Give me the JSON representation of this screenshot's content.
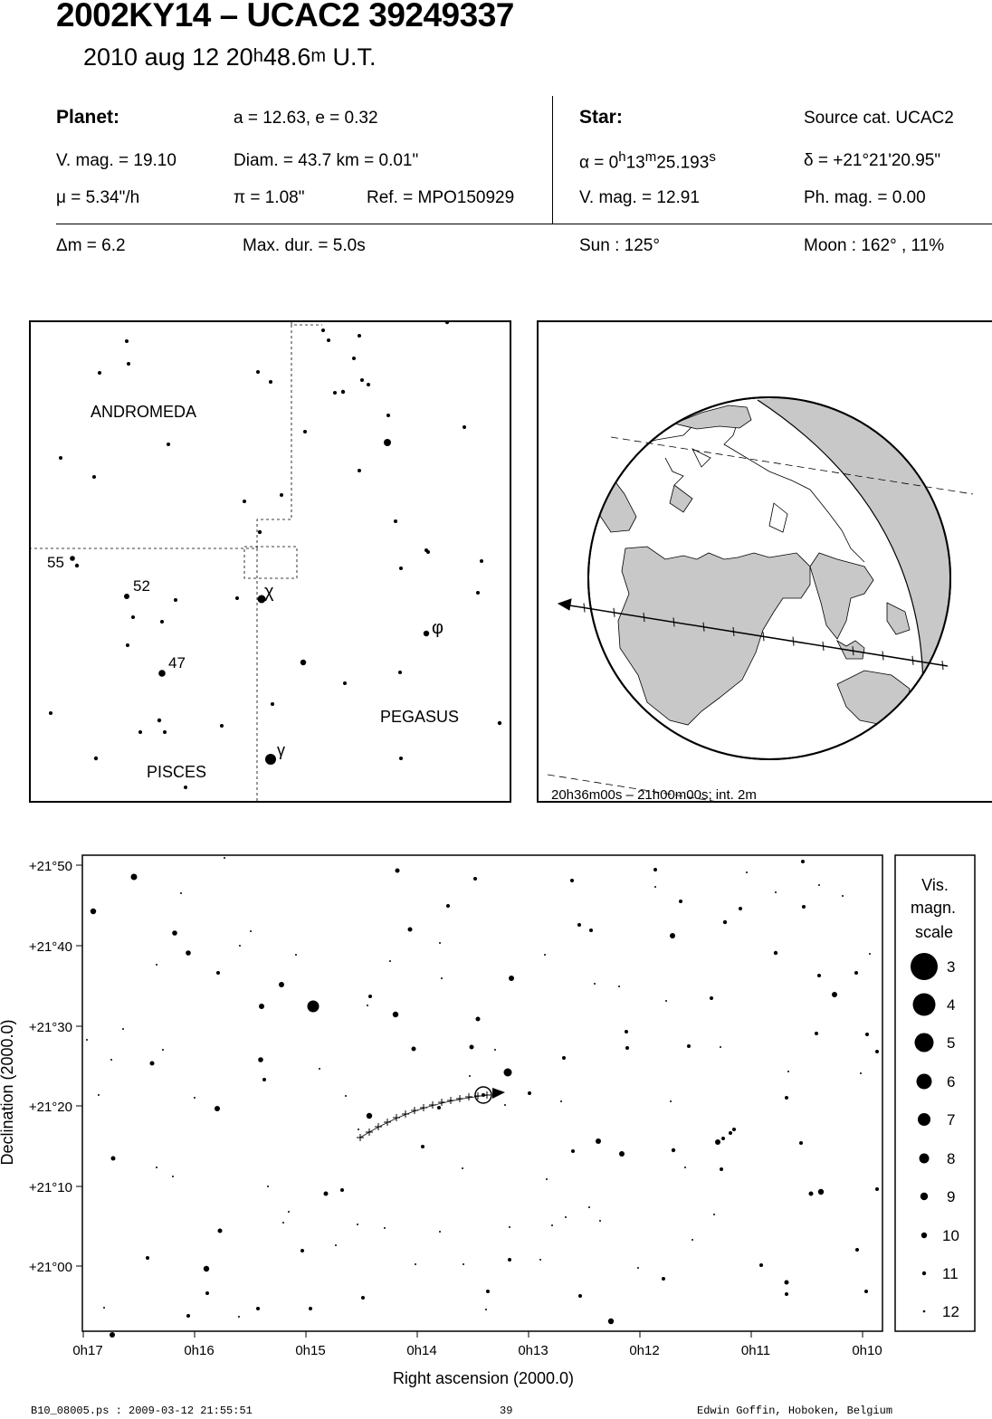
{
  "header": {
    "title": "2002KY14  –  UCAC2 39249337",
    "date": "2010 aug 12  20",
    "time_h": "h",
    "time_min": "48.6",
    "time_m": "m",
    "time_ut": " U.T."
  },
  "planet": {
    "heading": "Planet:",
    "orbit": "a = 12.63, e = 0.32",
    "vmag": "V. mag. = 19.10",
    "diam": "Diam. = 43.7 km = 0.01\"",
    "mu": "μ =  5.34\"/h",
    "pi": "π =  1.08\"",
    "ref": "Ref. = MPO150929"
  },
  "star": {
    "heading": "Star:",
    "source": "Source cat.  UCAC2",
    "alpha_pre": "α =  0",
    "alpha_h": "h",
    "alpha_mid": "13",
    "alpha_m": "m",
    "alpha_sec": "25.193",
    "alpha_s": "s",
    "delta": "δ = +21°21'20.95\"",
    "vmag": "V. mag. = 12.91",
    "phmag": "Ph. mag. =  0.00"
  },
  "event": {
    "dm": "Δm = 6.2",
    "maxdur": "Max. dur. = 5.0s",
    "sun": "Sun : 125°",
    "moon": "Moon : 162° , 11%"
  },
  "constellation_map": {
    "labels": {
      "andromeda": "ANDROMEDA",
      "pegasus": "PEGASUS",
      "pisces": "PISCES"
    },
    "star_labels": {
      "s55": "55",
      "s52": "52",
      "s47": "47",
      "chi": "χ",
      "phi": "φ",
      "gamma": "γ"
    }
  },
  "globe": {
    "caption": "20h36m00s – 21h00m00s; int.  2m"
  },
  "chart_data": {
    "type": "scatter",
    "xlabel": "Right ascension (2000.0)",
    "ylabel": "Declination (2000.0)",
    "x_ticks": [
      "0h17",
      "0h16",
      "0h15",
      "0h14",
      "0h13",
      "0h12",
      "0h11",
      "0h10"
    ],
    "y_ticks": [
      "+21°50",
      "+21°40",
      "+21°30",
      "+21°20",
      "+21°10",
      "+21°00"
    ],
    "target_star": {
      "ra": "0h13m25.193s",
      "dec": "+21°21'20.95\""
    }
  },
  "legend": {
    "title1": "Vis.",
    "title2": "magn.",
    "title3": "scale",
    "items": [
      "3",
      "4",
      "5",
      "6",
      "7",
      "8",
      "9",
      "10",
      "11",
      "12"
    ]
  },
  "footer": {
    "file": "B10_08005.ps : 2009-03-12 21:55:51",
    "page": "39",
    "author": "Edwin Goffin, Hoboken, Belgium"
  }
}
